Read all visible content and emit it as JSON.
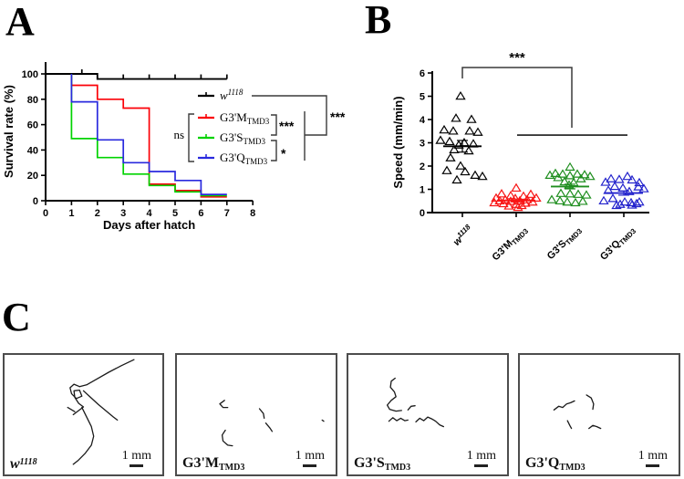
{
  "figure": {
    "panels": {
      "a": "A",
      "b": "B",
      "c": "C"
    }
  },
  "chart_data": [
    {
      "id": "larval_survival",
      "type": "line",
      "panel": "A",
      "title": "",
      "xlabel": "Days after hatch",
      "ylabel": "Survival rate (%)",
      "xlim": [
        0,
        8
      ],
      "ylim": [
        0,
        100
      ],
      "xticks": [
        0,
        1,
        2,
        3,
        4,
        5,
        6,
        7,
        8
      ],
      "yticks": [
        0,
        20,
        40,
        60,
        80,
        100
      ],
      "grid": false,
      "legend_position": "inside-right",
      "series": [
        {
          "name": "w1118",
          "label_base": "w",
          "label_sup": "1118",
          "italic": true,
          "color": "#000000",
          "step_points": [
            [
              0,
              100
            ],
            [
              2,
              100
            ],
            [
              2,
              96
            ],
            [
              7,
              96
            ]
          ],
          "censor_ticks": [
            1.4,
            3,
            4,
            5,
            6,
            7
          ]
        },
        {
          "name": "G3'M TMD3",
          "label_base": "G3'M",
          "label_sub": "TMD3",
          "color": "#fb0007",
          "step_points": [
            [
              1,
              100
            ],
            [
              1,
              91
            ],
            [
              2,
              91
            ],
            [
              2,
              80
            ],
            [
              3,
              80
            ],
            [
              3,
              73
            ],
            [
              4,
              73
            ],
            [
              4,
              13
            ],
            [
              5,
              13
            ],
            [
              5,
              8
            ],
            [
              6,
              8
            ],
            [
              6,
              3
            ],
            [
              7,
              3
            ]
          ]
        },
        {
          "name": "G3'S TMD3",
          "label_base": "G3'S",
          "label_sub": "TMD3",
          "color": "#00d300",
          "step_points": [
            [
              1,
              100
            ],
            [
              1,
              49
            ],
            [
              2,
              49
            ],
            [
              2,
              34
            ],
            [
              3,
              34
            ],
            [
              3,
              21
            ],
            [
              4,
              21
            ],
            [
              4,
              12
            ],
            [
              5,
              12
            ],
            [
              5,
              7
            ],
            [
              6,
              7
            ],
            [
              6,
              4
            ],
            [
              7,
              4
            ]
          ]
        },
        {
          "name": "G3'Q TMD3",
          "label_base": "G3'Q",
          "label_sub": "TMD3",
          "color": "#2a2ade",
          "step_points": [
            [
              1,
              100
            ],
            [
              1,
              78
            ],
            [
              2,
              78
            ],
            [
              2,
              48
            ],
            [
              3,
              48
            ],
            [
              3,
              30
            ],
            [
              4,
              30
            ],
            [
              4,
              23
            ],
            [
              5,
              23
            ],
            [
              5,
              16
            ],
            [
              6,
              16
            ],
            [
              6,
              5
            ],
            [
              7,
              5
            ]
          ]
        }
      ],
      "stats": {
        "ns": "ns",
        "m_vs_s": "***",
        "s_vs_q": "*",
        "wt_vs_mutants": "***"
      }
    },
    {
      "id": "crawling_speed",
      "type": "scatter",
      "panel": "B",
      "title": "",
      "xlabel": "",
      "ylabel": "Speed (mm/min)",
      "ylim": [
        0,
        6
      ],
      "yticks": [
        0,
        1,
        2,
        3,
        4,
        5,
        6
      ],
      "grid": false,
      "significance": {
        "label": "***",
        "comparison_level": 3.33
      },
      "groups": [
        {
          "name": "w1118",
          "label_base": "w",
          "label_sup": "1118",
          "italic": true,
          "color": "#000000",
          "mean": 2.85,
          "sem": 0.25,
          "points": [
            [
              5.0,
              -2
            ],
            [
              4.05,
              -7
            ],
            [
              4.0,
              10
            ],
            [
              3.55,
              -20
            ],
            [
              3.5,
              -10
            ],
            [
              3.5,
              8
            ],
            [
              3.45,
              17
            ],
            [
              3.1,
              -24
            ],
            [
              3.05,
              -14
            ],
            [
              3.0,
              2
            ],
            [
              2.95,
              12
            ],
            [
              2.9,
              -4
            ],
            [
              2.7,
              -9
            ],
            [
              2.65,
              7
            ],
            [
              2.35,
              -13
            ],
            [
              2.0,
              -2
            ],
            [
              1.8,
              -17
            ],
            [
              1.75,
              3
            ],
            [
              1.6,
              14
            ],
            [
              1.55,
              22
            ],
            [
              1.4,
              -6
            ]
          ]
        },
        {
          "name": "G3'M TMD3",
          "label_base": "G3'M",
          "label_sub": "TMD3",
          "color": "#f81414",
          "mean": 0.52,
          "sem": 0.06,
          "points": [
            [
              1.05,
              0
            ],
            [
              0.8,
              -16
            ],
            [
              0.78,
              16
            ],
            [
              0.72,
              -6
            ],
            [
              0.7,
              8
            ],
            [
              0.62,
              -22
            ],
            [
              0.62,
              22
            ],
            [
              0.6,
              -1
            ],
            [
              0.55,
              -12
            ],
            [
              0.55,
              12
            ],
            [
              0.5,
              -18
            ],
            [
              0.5,
              4
            ],
            [
              0.48,
              -6
            ],
            [
              0.45,
              18
            ],
            [
              0.42,
              -24
            ],
            [
              0.4,
              10
            ],
            [
              0.38,
              -14
            ],
            [
              0.35,
              0
            ],
            [
              0.3,
              6
            ],
            [
              0.28,
              -8
            ],
            [
              0.22,
              2
            ]
          ]
        },
        {
          "name": "G3'S TMD3",
          "label_base": "G3'S",
          "label_sub": "TMD3",
          "color": "#1e8e1e",
          "mean": 1.12,
          "sem": 0.1,
          "points": [
            [
              1.95,
              0
            ],
            [
              1.68,
              -16
            ],
            [
              1.65,
              -8
            ],
            [
              1.65,
              8
            ],
            [
              1.62,
              16
            ],
            [
              1.6,
              -22
            ],
            [
              1.58,
              0
            ],
            [
              1.55,
              22
            ],
            [
              1.5,
              -13
            ],
            [
              1.45,
              12
            ],
            [
              1.32,
              -6
            ],
            [
              1.28,
              4
            ],
            [
              1.18,
              -1
            ],
            [
              0.82,
              -10
            ],
            [
              0.8,
              0
            ],
            [
              0.78,
              9
            ],
            [
              0.75,
              18
            ],
            [
              0.55,
              -20
            ],
            [
              0.5,
              -11
            ],
            [
              0.45,
              -3
            ],
            [
              0.42,
              6
            ],
            [
              0.48,
              14
            ]
          ]
        },
        {
          "name": "G3'Q TMD3",
          "label_base": "G3'Q",
          "label_sub": "TMD3",
          "color": "#2222cc",
          "mean": 0.84,
          "sem": 0.09,
          "points": [
            [
              1.55,
              4
            ],
            [
              1.45,
              -14
            ],
            [
              1.42,
              -5
            ],
            [
              1.4,
              9
            ],
            [
              1.3,
              -20
            ],
            [
              1.28,
              17
            ],
            [
              1.12,
              -10
            ],
            [
              1.1,
              16
            ],
            [
              1.05,
              -1
            ],
            [
              1.02,
              22
            ],
            [
              0.95,
              -17
            ],
            [
              0.9,
              6
            ],
            [
              0.6,
              -12
            ],
            [
              0.5,
              -22
            ],
            [
              0.45,
              1
            ],
            [
              0.42,
              8
            ],
            [
              0.45,
              17
            ],
            [
              0.35,
              -4
            ],
            [
              0.32,
              9
            ],
            [
              0.38,
              14
            ],
            [
              0.3,
              -8
            ]
          ]
        }
      ]
    }
  ],
  "panel_c": {
    "boxes": [
      {
        "label_base": "w",
        "label_sup": "1118",
        "italic": true,
        "scale_label": "1 mm",
        "traces": [
          [
            [
              0.82,
              0.04
            ],
            [
              0.74,
              0.09
            ],
            [
              0.66,
              0.145
            ],
            [
              0.58,
              0.205
            ],
            [
              0.52,
              0.25
            ],
            [
              0.475,
              0.265
            ]
          ],
          [
            [
              0.475,
              0.265
            ],
            [
              0.44,
              0.245
            ],
            [
              0.415,
              0.275
            ],
            [
              0.425,
              0.325
            ],
            [
              0.455,
              0.365
            ],
            [
              0.49,
              0.345
            ],
            [
              0.475,
              0.295
            ],
            [
              0.44,
              0.3
            ],
            [
              0.445,
              0.355
            ],
            [
              0.47,
              0.405
            ],
            [
              0.5,
              0.435
            ],
            [
              0.465,
              0.47
            ],
            [
              0.435,
              0.5
            ]
          ],
          [
            [
              0.5,
              0.3
            ],
            [
              0.545,
              0.355
            ],
            [
              0.595,
              0.415
            ],
            [
              0.645,
              0.47
            ],
            [
              0.69,
              0.52
            ],
            [
              0.715,
              0.545
            ]
          ],
          [
            [
              0.49,
              0.44
            ],
            [
              0.52,
              0.52
            ],
            [
              0.55,
              0.6
            ],
            [
              0.565,
              0.68
            ],
            [
              0.55,
              0.755
            ],
            [
              0.51,
              0.825
            ],
            [
              0.465,
              0.885
            ],
            [
              0.435,
              0.915
            ]
          ],
          [
            [
              0.4,
              0.44
            ],
            [
              0.445,
              0.475
            ]
          ]
        ]
      },
      {
        "label_base": "G3'M",
        "label_sub": "TMD3",
        "scale_label": "1 mm",
        "traces": [
          [
            [
              0.3,
              0.38
            ],
            [
              0.27,
              0.41
            ],
            [
              0.29,
              0.44
            ],
            [
              0.32,
              0.44
            ]
          ],
          [
            [
              0.52,
              0.45
            ],
            [
              0.545,
              0.49
            ],
            [
              0.55,
              0.53
            ]
          ],
          [
            [
              0.56,
              0.57
            ],
            [
              0.585,
              0.61
            ],
            [
              0.6,
              0.64
            ]
          ],
          [
            [
              0.305,
              0.63
            ],
            [
              0.285,
              0.67
            ],
            [
              0.29,
              0.72
            ],
            [
              0.32,
              0.755
            ],
            [
              0.35,
              0.76
            ]
          ],
          [
            [
              0.915,
              0.545
            ],
            [
              0.925,
              0.555
            ]
          ]
        ]
      },
      {
        "label_base": "G3'S",
        "label_sub": "TMD3",
        "scale_label": "1 mm",
        "traces": [
          [
            [
              0.295,
              0.195
            ],
            [
              0.27,
              0.22
            ],
            [
              0.265,
              0.27
            ],
            [
              0.29,
              0.31
            ],
            [
              0.3,
              0.35
            ],
            [
              0.27,
              0.38
            ],
            [
              0.245,
              0.42
            ],
            [
              0.26,
              0.455
            ],
            [
              0.3,
              0.47
            ],
            [
              0.335,
              0.465
            ]
          ],
          [
            [
              0.375,
              0.46
            ],
            [
              0.395,
              0.43
            ],
            [
              0.42,
              0.425
            ]
          ],
          [
            [
              0.255,
              0.555
            ],
            [
              0.28,
              0.525
            ],
            [
              0.305,
              0.55
            ],
            [
              0.33,
              0.53
            ],
            [
              0.355,
              0.55
            ],
            [
              0.375,
              0.545
            ]
          ],
          [
            [
              0.425,
              0.56
            ],
            [
              0.45,
              0.53
            ],
            [
              0.475,
              0.55
            ],
            [
              0.5,
              0.52
            ],
            [
              0.525,
              0.535
            ],
            [
              0.55,
              0.555
            ],
            [
              0.575,
              0.585
            ],
            [
              0.6,
              0.6
            ]
          ]
        ]
      },
      {
        "label_base": "G3'Q",
        "label_sub": "TMD3",
        "scale_label": "1 mm",
        "traces": [
          [
            [
              0.215,
              0.46
            ],
            [
              0.245,
              0.43
            ],
            [
              0.27,
              0.44
            ],
            [
              0.295,
              0.41
            ],
            [
              0.32,
              0.4
            ],
            [
              0.345,
              0.385
            ]
          ],
          [
            [
              0.42,
              0.335
            ],
            [
              0.45,
              0.36
            ],
            [
              0.465,
              0.41
            ],
            [
              0.46,
              0.455
            ]
          ],
          [
            [
              0.3,
              0.55
            ],
            [
              0.315,
              0.59
            ],
            [
              0.325,
              0.615
            ]
          ],
          [
            [
              0.435,
              0.615
            ],
            [
              0.46,
              0.59
            ],
            [
              0.485,
              0.6
            ],
            [
              0.51,
              0.615
            ]
          ]
        ]
      }
    ]
  }
}
